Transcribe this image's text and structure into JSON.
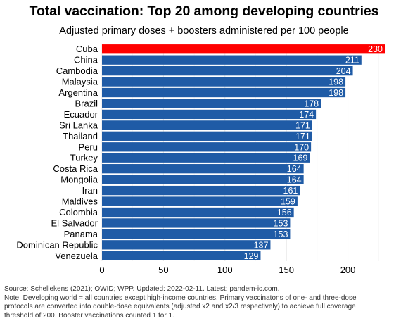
{
  "title": "Total vaccination: Top 20 among developing countries",
  "subtitle": "Adjusted primary doses + boosters administered per 100 people",
  "footer": {
    "line1": "Source: Schellekens (2021); OWID; WPP. Updated: 2022-02-11. Latest: pandem-ic.com.",
    "line2": "Note: Developing world = all countries except high-income countries. Primary vaccinatons of one- and three-dose",
    "line3": "protocols are converted into double-dose equivalents (adjusted x2 and x2/3 respectively) to achieve full coverage",
    "line4": "threshold of 200. Booster vaccinations counted 1 for 1."
  },
  "colors": {
    "highlight": "#ff0000",
    "bar": "#1f5ba6",
    "grid": "#e6e6e6"
  },
  "chart_data": {
    "type": "bar",
    "orientation": "horizontal",
    "categories": [
      "Cuba",
      "China",
      "Cambodia",
      "Malaysia",
      "Argentina",
      "Brazil",
      "Ecuador",
      "Sri Lanka",
      "Thailand",
      "Peru",
      "Turkey",
      "Costa Rica",
      "Mongolia",
      "Iran",
      "Maldives",
      "Colombia",
      "El Salvador",
      "Panama",
      "Dominican Republic",
      "Venezuela"
    ],
    "values": [
      230,
      211,
      204,
      198,
      198,
      178,
      174,
      171,
      171,
      170,
      169,
      164,
      164,
      161,
      159,
      156,
      153,
      153,
      137,
      129
    ],
    "highlight": "Cuba",
    "xlim": [
      0,
      230
    ],
    "xticks": [
      0,
      50,
      100,
      150,
      200
    ],
    "grid": true
  }
}
